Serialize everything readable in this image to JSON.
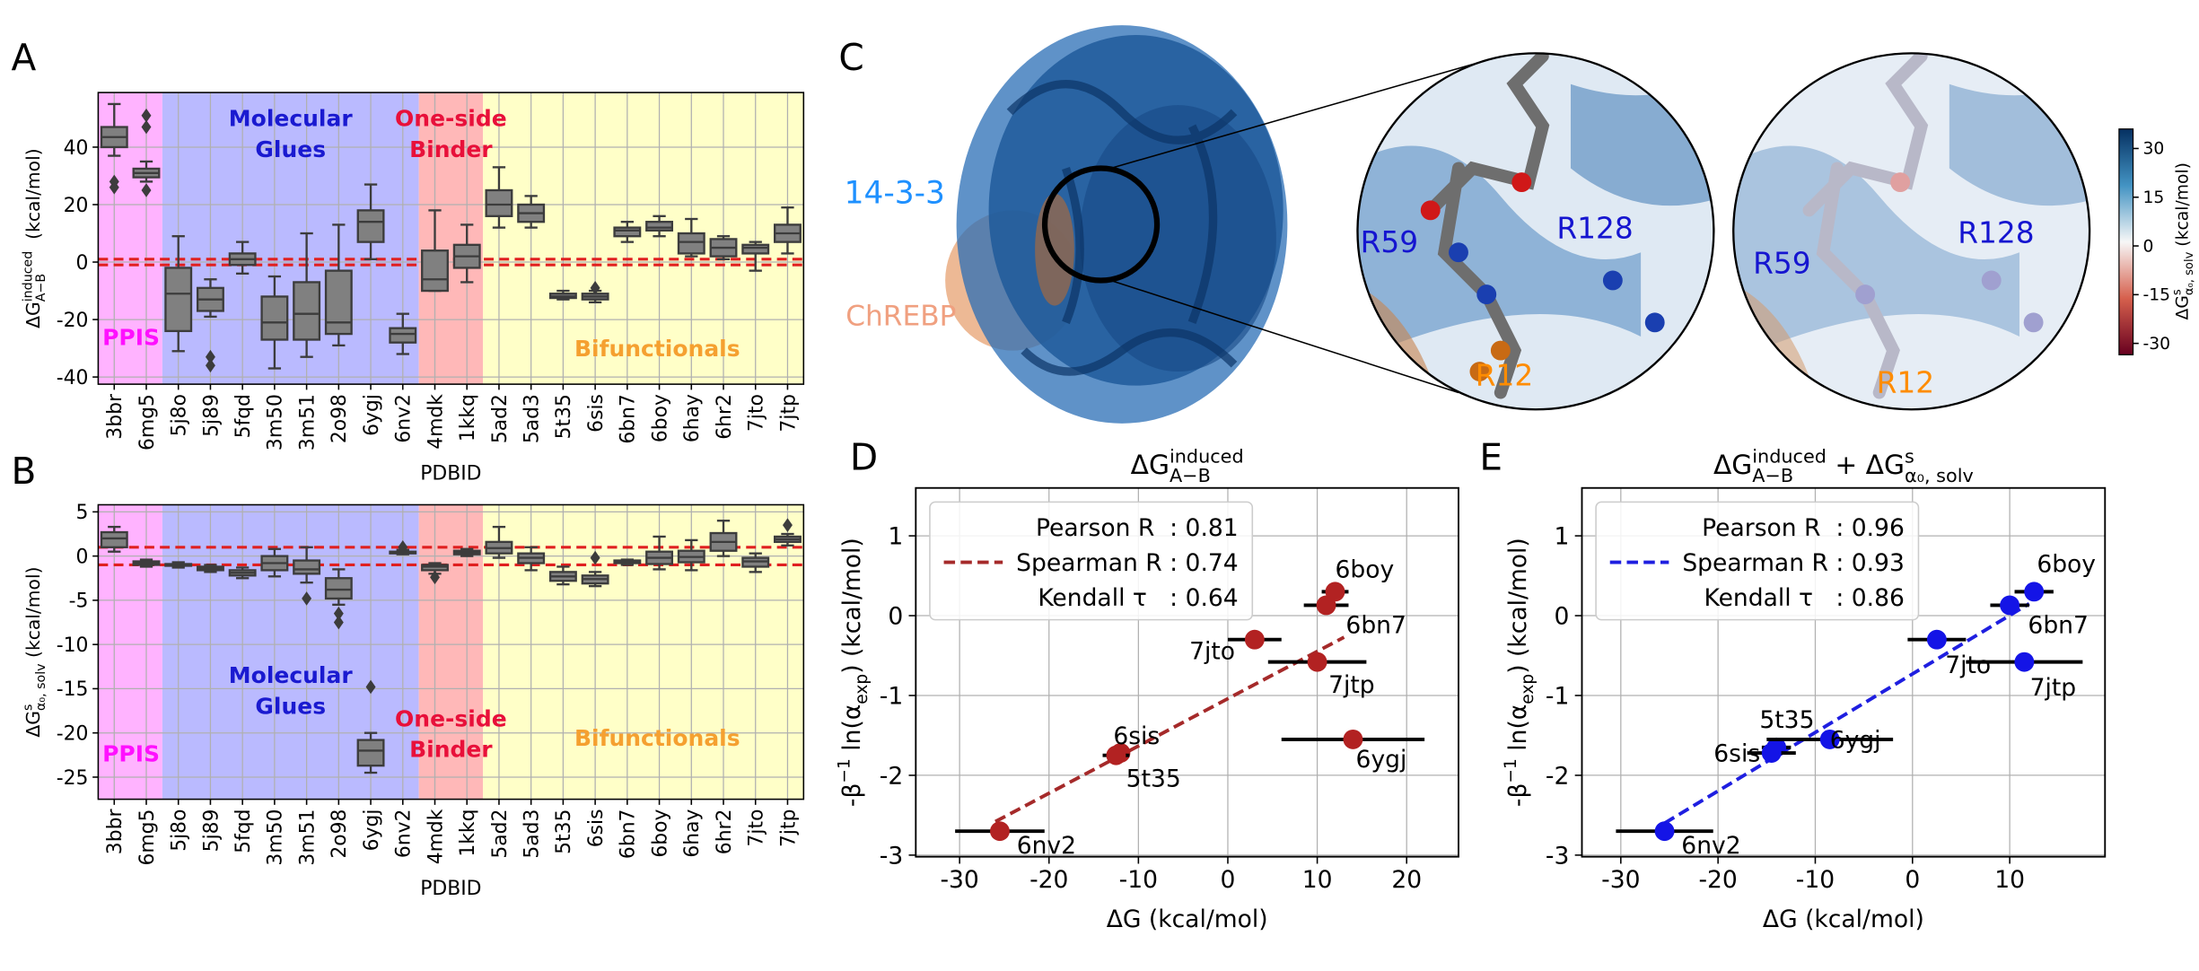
{
  "chart_data": [
    {
      "type": "box",
      "panel": "A",
      "ylabel": [
        {
          "base": "ΔG",
          "sup": "induced",
          "sub": "A−B"
        },
        {
          "base": "  (kcal/mol)"
        }
      ],
      "xlabel": "PDBID",
      "categories": [
        "3bbr",
        "6mg5",
        "5j8o",
        "5j89",
        "5fqd",
        "3m50",
        "3m51",
        "2o98",
        "6ygj",
        "6nv2",
        "4mdk",
        "1kkq",
        "5ad2",
        "5ad3",
        "5t35",
        "6sis",
        "6bn7",
        "6boy",
        "6hay",
        "6hr2",
        "7jto",
        "7jtp"
      ],
      "boxes": [
        {
          "whislo": 37,
          "q1": 40,
          "med": 43.5,
          "q3": 47,
          "whishi": 55,
          "fliers": [
            26,
            28
          ]
        },
        {
          "whislo": 28,
          "q1": 29.5,
          "med": 31,
          "q3": 32.5,
          "whishi": 35,
          "fliers": [
            51,
            47,
            25
          ]
        },
        {
          "whislo": -31,
          "q1": -24,
          "med": -11,
          "q3": -2,
          "whishi": 9
        },
        {
          "whislo": -19,
          "q1": -17,
          "med": -13,
          "q3": -9,
          "whishi": -6,
          "fliers": [
            -33,
            -36
          ]
        },
        {
          "whislo": -4,
          "q1": -1,
          "med": 1,
          "q3": 3,
          "whishi": 7
        },
        {
          "whislo": -37,
          "q1": -27,
          "med": -21,
          "q3": -12,
          "whishi": -5
        },
        {
          "whislo": -33,
          "q1": -27,
          "med": -18,
          "q3": -7,
          "whishi": 10
        },
        {
          "whislo": -29,
          "q1": -25,
          "med": -21,
          "q3": -3,
          "whishi": 13
        },
        {
          "whislo": 1,
          "q1": 7,
          "med": 14,
          "q3": 18,
          "whishi": 27
        },
        {
          "whislo": -32,
          "q1": -28,
          "med": -25,
          "q3": -23,
          "whishi": -18
        },
        {
          "whislo": -10,
          "q1": -10,
          "med": -6,
          "q3": 4,
          "whishi": 18
        },
        {
          "whislo": -7,
          "q1": -2,
          "med": 2,
          "q3": 6,
          "whishi": 13
        },
        {
          "whislo": 12,
          "q1": 16,
          "med": 20,
          "q3": 25,
          "whishi": 33
        },
        {
          "whislo": 12,
          "q1": 14,
          "med": 17,
          "q3": 20,
          "whishi": 23
        },
        {
          "whislo": -13,
          "q1": -12.5,
          "med": -12,
          "q3": -11,
          "whishi": -10
        },
        {
          "whislo": -14,
          "q1": -13,
          "med": -12,
          "q3": -11,
          "whishi": -10,
          "fliers": [
            -9
          ]
        },
        {
          "whislo": 7,
          "q1": 9,
          "med": 11,
          "q3": 12,
          "whishi": 14
        },
        {
          "whislo": 9,
          "q1": 11,
          "med": 12,
          "q3": 14,
          "whishi": 16
        },
        {
          "whislo": 2,
          "q1": 3,
          "med": 7,
          "q3": 10,
          "whishi": 15
        },
        {
          "whislo": 1,
          "q1": 2,
          "med": 5,
          "q3": 8,
          "whishi": 9
        },
        {
          "whislo": -3,
          "q1": 3,
          "med": 5,
          "q3": 6,
          "whishi": 7
        },
        {
          "whislo": 3,
          "q1": 7,
          "med": 10,
          "q3": 13,
          "whishi": 19
        }
      ],
      "color": "#808080",
      "edge_color": "#3c3c3c",
      "ylim": [
        -42.5,
        59
      ],
      "yticks": [
        -40,
        -20,
        0,
        20,
        40
      ],
      "ref_lines": [
        -1,
        1
      ],
      "ref_color": "#e02020",
      "grid": true,
      "regions": [
        {
          "label": [
            "PPIS"
          ],
          "from": "3bbr",
          "to": "6mg5",
          "color": "#ffb3ff",
          "text_color": "#ff10ff"
        },
        {
          "label": [
            "Molecular",
            "Glues"
          ],
          "from": "5j8o",
          "to": "6nv2",
          "color": "#babaff",
          "text_color": "#1a1ad0"
        },
        {
          "label": [
            "One-side",
            "Binder"
          ],
          "from": "4mdk",
          "to": "1kkq",
          "color": "#ffb8b8",
          "text_color": "#e8103a"
        },
        {
          "label": [
            "Bifunctionals"
          ],
          "from": "5ad2",
          "to": "7jtp",
          "color": "#ffffc8",
          "text_color": "#f5a030"
        }
      ]
    },
    {
      "type": "box",
      "panel": "B",
      "ylabel": [
        {
          "base": "ΔG",
          "sup": "s",
          "sub": "α₀, solv"
        },
        {
          "base": " (kcal/mol)"
        }
      ],
      "xlabel": "PDBID",
      "categories": [
        "3bbr",
        "6mg5",
        "5j8o",
        "5j89",
        "5fqd",
        "3m50",
        "3m51",
        "2o98",
        "6ygj",
        "6nv2",
        "4mdk",
        "1kkq",
        "5ad2",
        "5ad3",
        "5t35",
        "6sis",
        "6bn7",
        "6boy",
        "6hay",
        "6hr2",
        "7jto",
        "7jtp"
      ],
      "boxes": [
        {
          "whislo": 0.5,
          "q1": 1,
          "med": 2,
          "q3": 2.7,
          "whishi": 3.3
        },
        {
          "whislo": -1.2,
          "q1": -1,
          "med": -0.8,
          "q3": -0.6,
          "whishi": -0.4
        },
        {
          "whislo": -1.3,
          "q1": -1.1,
          "med": -1,
          "q3": -0.9,
          "whishi": -0.7
        },
        {
          "whislo": -1.8,
          "q1": -1.6,
          "med": -1.4,
          "q3": -1.2,
          "whishi": -1
        },
        {
          "whislo": -2.5,
          "q1": -2.2,
          "med": -1.9,
          "q3": -1.6,
          "whishi": -1.3
        },
        {
          "whislo": -2.3,
          "q1": -1.6,
          "med": -0.8,
          "q3": 0,
          "whishi": 0.8
        },
        {
          "whislo": -3,
          "q1": -2,
          "med": -1.5,
          "q3": -0.5,
          "whishi": 1,
          "fliers": [
            -4.8
          ]
        },
        {
          "whislo": -5.5,
          "q1": -4.8,
          "med": -3.8,
          "q3": -2.5,
          "whishi": -1.5,
          "fliers": [
            -6.5,
            -7.5
          ]
        },
        {
          "whislo": -24.5,
          "q1": -23.7,
          "med": -22,
          "q3": -20.8,
          "whishi": -20,
          "fliers": [
            -14.8
          ]
        },
        {
          "whislo": 0.2,
          "q1": 0.3,
          "med": 0.4,
          "q3": 0.5,
          "whishi": 0.7,
          "fliers": [
            1
          ]
        },
        {
          "whislo": -2,
          "q1": -1.6,
          "med": -1.2,
          "q3": -1,
          "whishi": -0.8,
          "fliers": [
            -2.4
          ]
        },
        {
          "whislo": 0,
          "q1": 0.2,
          "med": 0.4,
          "q3": 0.6,
          "whishi": 0.8
        },
        {
          "whislo": -0.2,
          "q1": 0.3,
          "med": 0.9,
          "q3": 1.6,
          "whishi": 3.3
        },
        {
          "whislo": -1.6,
          "q1": -0.8,
          "med": -0.2,
          "q3": 0.3,
          "whishi": 1
        },
        {
          "whislo": -3.2,
          "q1": -2.8,
          "med": -2.3,
          "q3": -1.8,
          "whishi": -1.2
        },
        {
          "whislo": -3.4,
          "q1": -3.1,
          "med": -2.6,
          "q3": -2.2,
          "whishi": -1.8,
          "fliers": [
            -0.2
          ]
        },
        {
          "whislo": -1,
          "q1": -0.8,
          "med": -0.6,
          "q3": -0.5,
          "whishi": -0.4
        },
        {
          "whislo": -1.5,
          "q1": -0.9,
          "med": -0.2,
          "q3": 0.5,
          "whishi": 2.2
        },
        {
          "whislo": -1.6,
          "q1": -0.7,
          "med": -0.1,
          "q3": 0.6,
          "whishi": 1.8
        },
        {
          "whislo": 0,
          "q1": 0.6,
          "med": 1.6,
          "q3": 2.6,
          "whishi": 4
        },
        {
          "whislo": -1.8,
          "q1": -1.2,
          "med": -0.6,
          "q3": -0.2,
          "whishi": 0.3
        },
        {
          "whislo": 1.2,
          "q1": 1.6,
          "med": 1.9,
          "q3": 2.2,
          "whishi": 2.5,
          "fliers": [
            3.5
          ]
        }
      ],
      "color": "#808080",
      "edge_color": "#3c3c3c",
      "ylim": [
        -27.5,
        5.8
      ],
      "yticks": [
        -25,
        -20,
        -15,
        -10,
        -5,
        0,
        5
      ],
      "ref_lines": [
        -1,
        1
      ],
      "ref_color": "#e02020",
      "grid": true,
      "regions": [
        {
          "label": [
            "PPIS"
          ],
          "from": "3bbr",
          "to": "6mg5",
          "color": "#ffb3ff",
          "text_color": "#ff10ff"
        },
        {
          "label": [
            "Molecular",
            "Glues"
          ],
          "from": "5j8o",
          "to": "6nv2",
          "color": "#babaff",
          "text_color": "#1a1ad0"
        },
        {
          "label": [
            "One-side",
            "Binder"
          ],
          "from": "4mdk",
          "to": "1kkq",
          "color": "#ffb8b8",
          "text_color": "#e8103a"
        },
        {
          "label": [
            "Bifunctionals"
          ],
          "from": "5ad2",
          "to": "7jtp",
          "color": "#ffffc8",
          "text_color": "#f5a030"
        }
      ]
    },
    {
      "type": "image",
      "panel": "C",
      "labels": {
        "protein": "14-3-3",
        "partner": "ChREBP",
        "residues": [
          "R59",
          "R128",
          "R12"
        ]
      },
      "colorbar": {
        "label": [
          {
            "base": "ΔG",
            "sup": "s",
            "sub": "α₀, solv"
          },
          {
            "base": " (kcal/mol)"
          }
        ],
        "lim": [
          -33.5,
          36
        ],
        "ticks": [
          30,
          15,
          0,
          -15,
          -30
        ]
      }
    },
    {
      "type": "scatter",
      "panel": "D",
      "title": [
        {
          "base": "ΔG",
          "sup": "induced",
          "sub": "A−B"
        }
      ],
      "xlabel": "ΔG (kcal/mol)",
      "ylabel": [
        {
          "base": "-β",
          "sup": "−1"
        },
        {
          "base": " ln(α",
          "sub": "exp"
        },
        {
          "base": ") (kcal/mol)"
        }
      ],
      "labels": [
        "6nv2",
        "5t35",
        "6sis",
        "7jto",
        "7jtp",
        "6bn7",
        "6boy",
        "6ygj"
      ],
      "x": [
        -25.5,
        -12,
        -12.5,
        3,
        10,
        11,
        12,
        14
      ],
      "values": [
        -2.7,
        -1.72,
        -1.75,
        -0.3,
        -0.58,
        0.13,
        0.3,
        -1.55
      ],
      "xerr": [
        5,
        1,
        1.5,
        3,
        5.5,
        2.5,
        1.5,
        8
      ],
      "color": "#b22222",
      "err_color": "#000000",
      "fit": {
        "x": [
          -26,
          13
        ],
        "y": [
          -2.58,
          -0.27
        ],
        "color": "#a52a2a"
      },
      "legend": [
        {
          "text": "Pearson R  : 0.81"
        },
        {
          "text": "Spearman R : 0.74",
          "marker": "dashed-line"
        },
        {
          "text": "Kendall τ   : 0.64"
        }
      ],
      "xlim": [
        -34.9,
        25.8
      ],
      "xticks": [
        -30,
        -20,
        -10,
        0,
        10,
        20
      ],
      "ylim": [
        -3.02,
        1.6
      ],
      "yticks": [
        -3,
        -2,
        -1,
        0,
        1
      ],
      "grid": true
    },
    {
      "type": "scatter",
      "panel": "E",
      "title": [
        {
          "base": "ΔG",
          "sup": "induced",
          "sub": "A−B"
        },
        {
          "base": " + ΔG",
          "sup": "s",
          "sub": "α₀, solv"
        }
      ],
      "xlabel": "ΔG (kcal/mol)",
      "ylabel": [
        {
          "base": "-β",
          "sup": "−1"
        },
        {
          "base": " ln(α",
          "sub": "exp"
        },
        {
          "base": ") (kcal/mol)"
        }
      ],
      "labels": [
        "6nv2",
        "5t35",
        "6sis",
        "7jto",
        "7jtp",
        "6bn7",
        "6boy",
        "6ygj"
      ],
      "x": [
        -25.5,
        -14,
        -14.5,
        2.5,
        11.5,
        10,
        12.5,
        -8.5
      ],
      "values": [
        -2.7,
        -1.65,
        -1.72,
        -0.3,
        -0.58,
        0.13,
        0.3,
        -1.55
      ],
      "xerr": [
        5,
        1.5,
        2.5,
        3,
        6,
        2,
        2,
        6.5
      ],
      "color": "#1414e6",
      "err_color": "#000000",
      "fit": {
        "x": [
          -25.5,
          12
        ],
        "y": [
          -2.6,
          0.15
        ],
        "color": "#1f1fe0"
      },
      "legend": [
        {
          "text": "Pearson R  : 0.96"
        },
        {
          "text": "Spearman R : 0.93",
          "marker": "dashed-line"
        },
        {
          "text": "Kendall τ   : 0.86"
        }
      ],
      "xlim": [
        -34,
        19.8
      ],
      "xticks": [
        -30,
        -20,
        -10,
        0,
        10
      ],
      "ylim": [
        -3.02,
        1.6
      ],
      "yticks": [
        -3,
        -2,
        -1,
        0,
        1
      ],
      "grid": true
    }
  ]
}
